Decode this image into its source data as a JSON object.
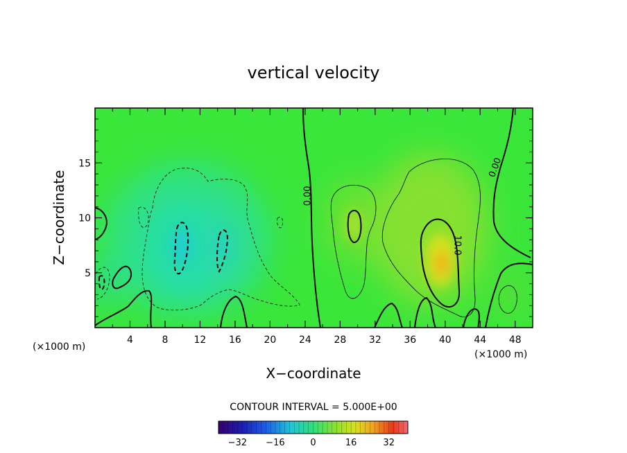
{
  "chart_data": {
    "type": "heatmap",
    "title": "vertical velocity",
    "xlabel": "X−coordinate",
    "ylabel": "Z−coordinate",
    "x_unit": "(×1000 m)",
    "x_unit_left": "(×1000 m)",
    "xlim": [
      0,
      50
    ],
    "ylim": [
      0,
      20
    ],
    "x_ticks": [
      4,
      8,
      12,
      16,
      20,
      24,
      28,
      32,
      36,
      40,
      44,
      48
    ],
    "y_ticks": [
      5,
      10,
      15
    ],
    "contour_interval_text": "CONTOUR INTERVAL = 5.000E+00",
    "contour_labels": [
      {
        "text": "0.00",
        "x": 24.6,
        "y": 12.0,
        "rotate": -90
      },
      {
        "text": "10.0",
        "x": 41.1,
        "y": 7.5,
        "rotate": 90
      },
      {
        "text": "0.00",
        "x": 46.0,
        "y": 14.5,
        "rotate": -70
      }
    ],
    "colorbar": {
      "min": -40,
      "max": 40,
      "ticks": [
        -32,
        -16,
        0,
        16,
        32
      ]
    },
    "features": [
      {
        "kind": "updraft-max",
        "x": 39.5,
        "z": 6.0,
        "value": 18
      },
      {
        "kind": "updraft",
        "x": 29.5,
        "z": 9.5,
        "value": 8
      },
      {
        "kind": "downdraft",
        "x": 10.0,
        "z": 7.5,
        "value": -10
      },
      {
        "kind": "downdraft",
        "x": 14.5,
        "z": 7.0,
        "value": -9
      },
      {
        "kind": "downdraft",
        "x": 1.0,
        "z": 3.5,
        "value": -8
      }
    ]
  }
}
